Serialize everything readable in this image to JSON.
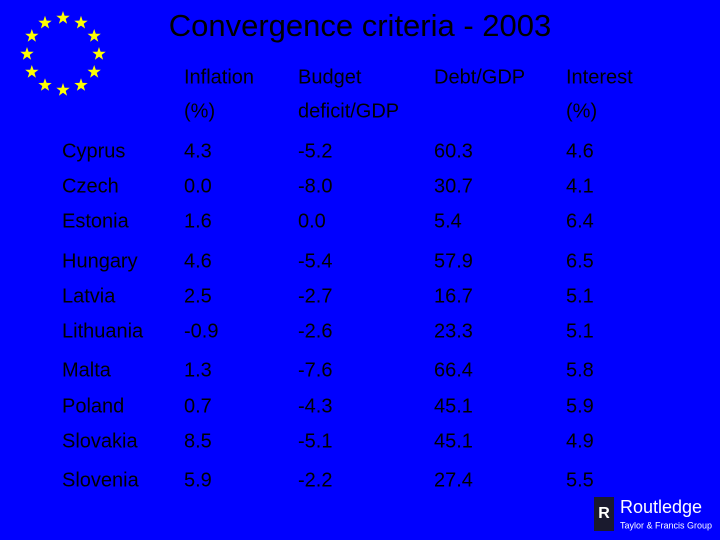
{
  "title": "Convergence criteria - 2003",
  "table": {
    "header": [
      [
        "Inflation",
        "(%)"
      ],
      [
        "Budget",
        "deficit/GDP"
      ],
      [
        "Debt/GDP"
      ],
      [
        "Interest",
        "(%)"
      ]
    ],
    "rows": [
      [
        "Cyprus",
        "4.3",
        "-5.2",
        "60.3",
        "4.6"
      ],
      [
        "Czech",
        "0.0",
        "-8.0",
        "30.7",
        "4.1"
      ],
      [
        "Estonia",
        "1.6",
        "0.0",
        "5.4",
        "6.4"
      ],
      [
        "Hungary",
        "4.6",
        "-5.4",
        "57.9",
        "6.5"
      ],
      [
        "Latvia",
        "2.5",
        "-2.7",
        "16.7",
        "5.1"
      ],
      [
        "Lithuania",
        "-0.9",
        "-2.6",
        "23.3",
        "5.1"
      ],
      [
        "Malta",
        "1.3",
        "-7.6",
        "66.4",
        "5.8"
      ],
      [
        "Poland",
        "0.7",
        "-4.3",
        "45.1",
        "5.9"
      ],
      [
        "Slovakia",
        "8.5",
        "-5.1",
        "45.1",
        "4.9"
      ],
      [
        "Slovenia",
        "5.9",
        "-2.2",
        "27.4",
        "5.5"
      ]
    ]
  },
  "logo": {
    "name": "Routledge",
    "group": "Taylor & Francis Group"
  }
}
